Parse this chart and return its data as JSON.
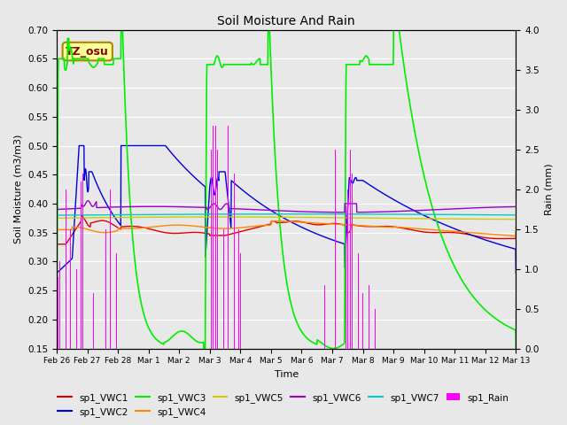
{
  "title": "Soil Moisture And Rain",
  "xlabel": "Time",
  "ylabel_left": "Soil Moisture (m3/m3)",
  "ylabel_right": "Rain (mm)",
  "ylim_left": [
    0.15,
    0.7
  ],
  "ylim_right": [
    0.0,
    4.0
  ],
  "annotation_text": "TZ_osu",
  "annotation_color": "#880000",
  "annotation_bg": "#ffff99",
  "annotation_border": "#aa8800",
  "colors": {
    "sp1_VWC1": "#dd0000",
    "sp1_VWC2": "#0000dd",
    "sp1_VWC3": "#00ee00",
    "sp1_VWC4": "#ff8800",
    "sp1_VWC5": "#cccc00",
    "sp1_VWC6": "#9900cc",
    "sp1_VWC7": "#00cccc",
    "sp1_Rain": "#ff00ff"
  },
  "x_tick_labels": [
    "Feb 26",
    "Feb 27",
    "Feb 28",
    "Mar 1",
    "Mar 2",
    "Mar 3",
    "Mar 4",
    "Mar 5",
    "Mar 6",
    "Mar 7",
    "Mar 8",
    "Mar 9",
    "Mar 10",
    "Mar 11",
    "Mar 12",
    "Mar 13"
  ],
  "yticks_left": [
    0.15,
    0.2,
    0.25,
    0.3,
    0.35,
    0.4,
    0.45,
    0.5,
    0.55,
    0.6,
    0.65,
    0.7
  ],
  "yticks_right": [
    0.0,
    0.5,
    1.0,
    1.5,
    2.0,
    2.5,
    3.0,
    3.5,
    4.0
  ],
  "figsize": [
    6.4,
    4.8
  ],
  "dpi": 100,
  "bg_color": "#e8e8e8",
  "fig_bg": "#e8e8e8",
  "grid_color": "#ffffff",
  "n_points": 1600
}
